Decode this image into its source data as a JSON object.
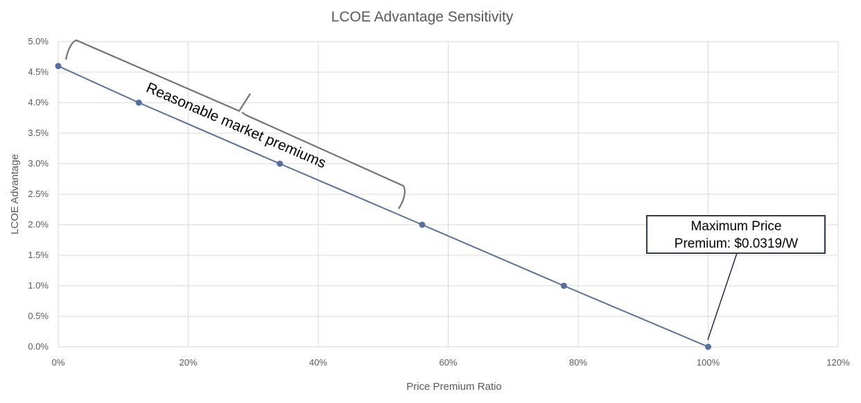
{
  "chart_data": {
    "type": "line",
    "title": "LCOE Advantage Sensitivity",
    "xlabel": "Price Premium Ratio",
    "ylabel": "LCOE Advantage",
    "xlim": [
      0,
      120
    ],
    "ylim": [
      0,
      5
    ],
    "x_ticks": [
      "0%",
      "20%",
      "40%",
      "60%",
      "80%",
      "100%",
      "120%"
    ],
    "y_ticks": [
      "0.0%",
      "0.5%",
      "1.0%",
      "1.5%",
      "2.0%",
      "2.5%",
      "3.0%",
      "3.5%",
      "4.0%",
      "4.5%",
      "5.0%"
    ],
    "grid": true,
    "series": [
      {
        "x": [
          0,
          12.4,
          34.1,
          56.0,
          77.8,
          100
        ],
        "y": [
          4.6,
          4.0,
          3.0,
          2.0,
          1.0,
          0.0
        ],
        "color": "#5470a0"
      }
    ],
    "annotations": {
      "brace_label": "Reasonable market premiums",
      "callout_line1": "Maximum Price",
      "callout_line2": "Premium: $0.0319/W"
    }
  }
}
